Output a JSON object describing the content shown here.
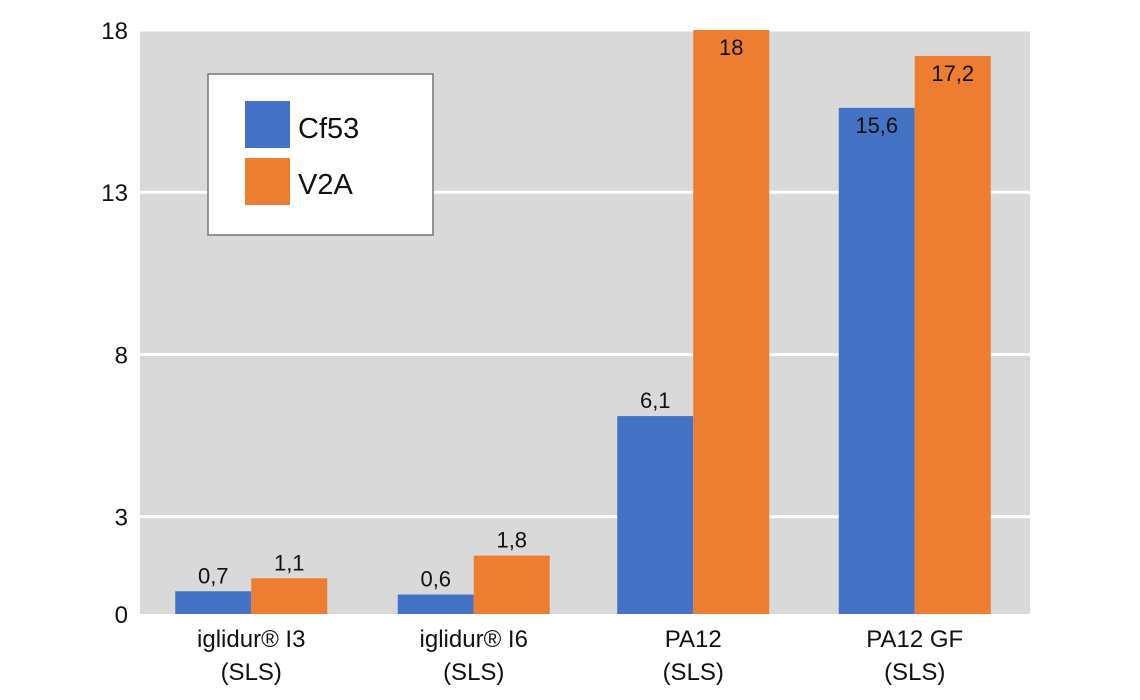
{
  "chart_data": {
    "type": "bar",
    "categories": [
      [
        "iglidur® I3",
        "(SLS)"
      ],
      [
        "iglidur® I6",
        "(SLS)"
      ],
      [
        "PA12",
        "(SLS)"
      ],
      [
        "PA12 GF",
        "(SLS)"
      ]
    ],
    "series": [
      {
        "name": "Cf53",
        "color": "#4472c4",
        "values": [
          0.7,
          0.6,
          6.1,
          15.6
        ],
        "labels": [
          "0,7",
          "0,6",
          "6,1",
          "15,6"
        ]
      },
      {
        "name": "V2A",
        "color": "#ed7d31",
        "values": [
          1.1,
          1.8,
          18,
          17.2
        ],
        "labels": [
          "1,1",
          "1,8",
          "18",
          "17,2"
        ]
      }
    ],
    "yticks": [
      0,
      3,
      8,
      13,
      18
    ],
    "ylim": [
      0,
      18
    ],
    "grid": true,
    "legend_position": "top-left",
    "background": "#d9d9d9",
    "title": "",
    "xlabel": "",
    "ylabel": ""
  }
}
